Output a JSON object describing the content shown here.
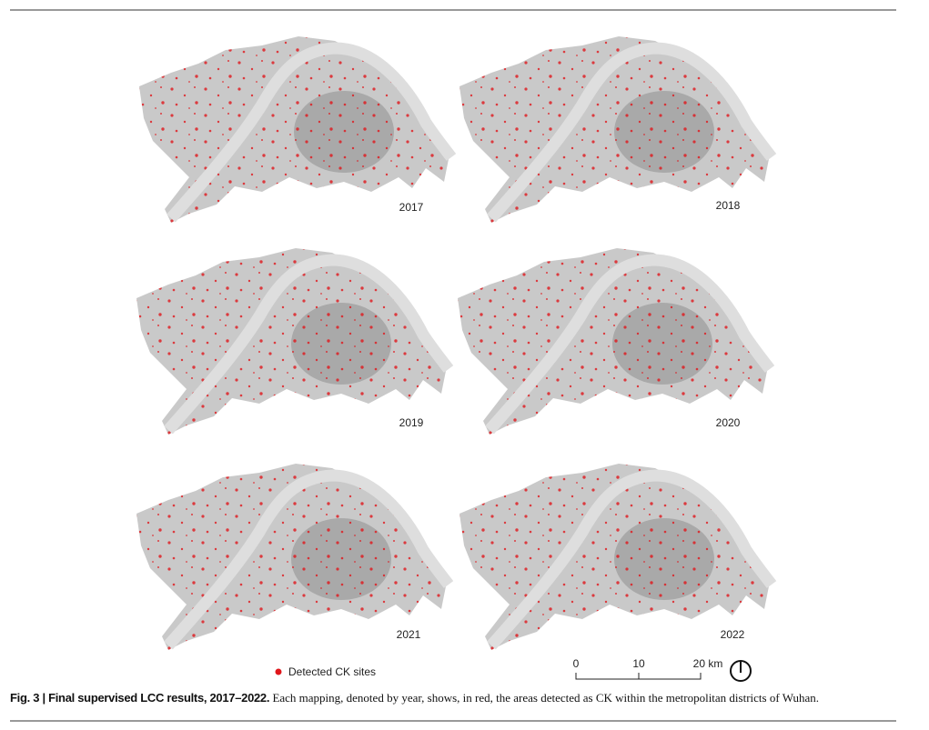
{
  "figure": {
    "panels": [
      {
        "year": "2017"
      },
      {
        "year": "2018"
      },
      {
        "year": "2019"
      },
      {
        "year": "2020"
      },
      {
        "year": "2021"
      },
      {
        "year": "2022"
      }
    ],
    "legend": "Detected CK sites",
    "scale_bar": {
      "labels": [
        "0",
        "10",
        "20 km"
      ]
    },
    "caption": {
      "label": "Fig. 3 | Final supervised LCC results, 2017–2022.",
      "text": "Each mapping, denoted by year, shows, in red, the areas detected as CK within the metropolitan districts of Wuhan."
    }
  }
}
